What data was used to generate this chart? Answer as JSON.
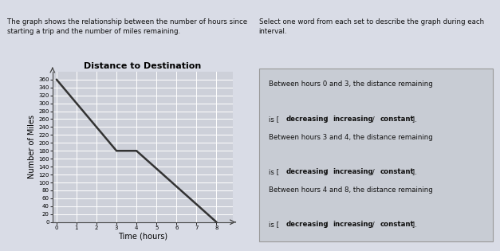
{
  "title": "Distance to Destination",
  "xlabel": "Time (hours)",
  "ylabel": "Number of Miles",
  "x_data": [
    0,
    3,
    4,
    8
  ],
  "y_data": [
    360,
    180,
    180,
    0
  ],
  "x_ticks": [
    0,
    1,
    2,
    3,
    4,
    5,
    6,
    7,
    8
  ],
  "y_ticks": [
    0,
    20,
    40,
    60,
    80,
    100,
    120,
    140,
    160,
    180,
    200,
    220,
    240,
    260,
    280,
    300,
    320,
    340,
    360
  ],
  "xlim": [
    -0.2,
    8.8
  ],
  "ylim": [
    0,
    380
  ],
  "line_color": "#333333",
  "line_width": 1.8,
  "bg_left": "#d9dce6",
  "bg_right": "#d0d3dc",
  "plot_bg": "#cdd0d9",
  "grid_color": "#ffffff",
  "top_bar_color": "#3a3a3a",
  "header_left": "The graph shows the relationship between the number of hours since\nstarting a trip and the number of miles remaining.",
  "header_right": "Select one word from each set to describe the graph during each\ninterval.",
  "box_bg": "#c8ccd4",
  "box_border": "#999999",
  "intervals": [
    [
      "Between hours 0 and 3, the distance remaining",
      "is [ decreasing / increasing / constant ]."
    ],
    [
      "Between hours 3 and 4, the distance remaining",
      "is [ decreasing / increasing / constant ]."
    ],
    [
      "Between hours 4 and 8, the distance remaining",
      "is [ decreasing / increasing / constant ]."
    ]
  ],
  "interval_line2_parts": [
    [
      "is [ ",
      "decreasing",
      " / ",
      "increasing",
      " / ",
      "constant",
      " ]."
    ],
    [
      "is [ ",
      "decreasing",
      " / ",
      "increasing",
      " / ",
      "constant",
      " ]."
    ],
    [
      "is [ ",
      "decreasing",
      " / ",
      "increasing",
      " / ",
      "constant",
      " ]."
    ]
  ]
}
